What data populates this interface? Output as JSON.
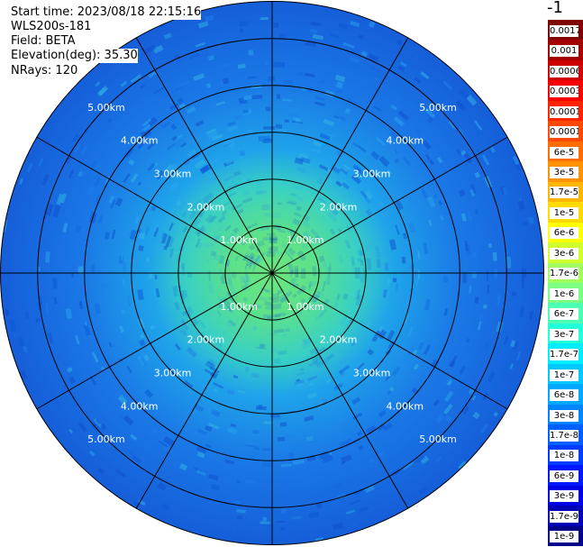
{
  "header": {
    "start_time": "Start time: 2023/08/18 22:15:16",
    "instrument": "WLS200s-181",
    "field": "Field: BETA",
    "elevation": "Elevation(deg): 35.30",
    "nrays": "NRays: 120"
  },
  "colorbar": {
    "unit": "-1 sr",
    "labels": [
      "0.0017",
      "0.001",
      "0.0006",
      "0.0003",
      "0.00017",
      "0.0001",
      "6e-5",
      "3e-5",
      "1.7e-5",
      "1e-5",
      "6e-6",
      "3e-6",
      "1.7e-6",
      "1e-6",
      "6e-7",
      "3e-7",
      "1.7e-7",
      "1e-7",
      "6e-8",
      "3e-8",
      "1.7e-8",
      "1e-8",
      "6e-9",
      "3e-9",
      "1.7e-9",
      "1e-9"
    ],
    "colors": [
      "#800000",
      "#a50000",
      "#d10000",
      "#f80000",
      "#ff2400",
      "#ff4800",
      "#ff6d00",
      "#ff9200",
      "#ffb600",
      "#ffdb00",
      "#ffff00",
      "#d1ff2e",
      "#a0ff5e",
      "#7aff84",
      "#4bffb3",
      "#24ffdb",
      "#00ecff",
      "#00c8ff",
      "#00a8ff",
      "#0084ff",
      "#0060ff",
      "#003cff",
      "#0018ff",
      "#0000e6",
      "#0000b7",
      "#000088"
    ]
  },
  "chart_data": {
    "type": "heatmap",
    "title": "",
    "field": "BETA",
    "nrays": 120,
    "elevation_deg": 35.3,
    "range_rings_km": [
      1.0,
      2.0,
      3.0,
      4.0,
      5.0
    ],
    "ring_labels": [
      "1.00km",
      "2.00km",
      "3.00km",
      "4.00km",
      "5.00km"
    ],
    "radial_spokes_deg": [
      0,
      30,
      60,
      90,
      120,
      150,
      180,
      210,
      240,
      270,
      300,
      330
    ],
    "max_range_km": 5.8,
    "typical_values": {
      "inner_ring_0_to_2km": "3e-7 to 1e-6",
      "mid_ring_2_to_3km": "1e-7 to 3e-7",
      "outer_ring_3_to_5.8km": "1e-8 to 1e-7"
    },
    "grid": true
  }
}
